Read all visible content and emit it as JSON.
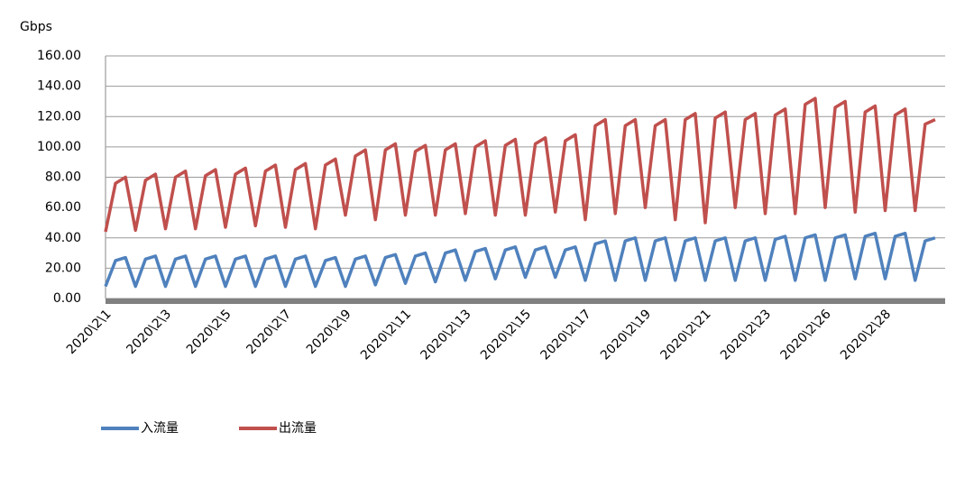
{
  "chart_data": {
    "type": "line",
    "y_label": "Gbps",
    "ylim": [
      0,
      160
    ],
    "yticks": [
      {
        "value": 0,
        "label": "0.00"
      },
      {
        "value": 20,
        "label": "20.00"
      },
      {
        "value": 40,
        "label": "40.00"
      },
      {
        "value": 60,
        "label": "60.00"
      },
      {
        "value": 80,
        "label": "80.00"
      },
      {
        "value": 100,
        "label": "100.00"
      },
      {
        "value": 120,
        "label": "120.00"
      },
      {
        "value": 140,
        "label": "140.00"
      },
      {
        "value": 160,
        "label": "160.00"
      }
    ],
    "grid": true,
    "legend": "bottom",
    "categories": [
      "2020\\2\\1",
      null,
      null,
      null,
      null,
      null,
      "2020\\2\\3",
      null,
      null,
      null,
      null,
      null,
      "2020\\2\\5",
      null,
      null,
      null,
      null,
      null,
      "2020\\2\\7",
      null,
      null,
      null,
      null,
      null,
      "2020\\2\\9",
      null,
      null,
      null,
      null,
      null,
      "2020\\2\\11",
      null,
      null,
      null,
      null,
      null,
      "2020\\2\\13",
      null,
      null,
      null,
      null,
      null,
      "2020\\2\\15",
      null,
      null,
      null,
      null,
      null,
      "2020\\2\\17",
      null,
      null,
      null,
      null,
      null,
      "2020\\2\\19",
      null,
      null,
      null,
      null,
      null,
      "2020\\2\\21",
      null,
      null,
      null,
      null,
      null,
      "2020\\2\\23",
      null,
      null,
      null,
      null,
      null,
      "2020\\2\\26",
      null,
      null,
      null,
      null,
      null,
      "2020\\2\\28",
      null,
      null,
      null,
      null,
      null
    ],
    "series": [
      {
        "name": "入流量",
        "color": "#4f81bd",
        "values": [
          8,
          25,
          27,
          8,
          26,
          28,
          8,
          26,
          28,
          8,
          26,
          28,
          8,
          26,
          28,
          8,
          26,
          28,
          8,
          26,
          28,
          8,
          25,
          27,
          8,
          26,
          28,
          9,
          27,
          29,
          10,
          28,
          30,
          11,
          30,
          32,
          12,
          31,
          33,
          13,
          32,
          34,
          14,
          32,
          34,
          14,
          32,
          34,
          12,
          36,
          38,
          12,
          38,
          40,
          12,
          38,
          40,
          12,
          38,
          40,
          12,
          38,
          40,
          12,
          38,
          40,
          12,
          39,
          41,
          12,
          40,
          42,
          12,
          40,
          42,
          13,
          41,
          43,
          13,
          41,
          43,
          12,
          38,
          40
        ]
      },
      {
        "name": "出流量",
        "color": "#c0504d",
        "values": [
          44,
          76,
          80,
          45,
          78,
          82,
          46,
          80,
          84,
          46,
          81,
          85,
          47,
          82,
          86,
          48,
          84,
          88,
          47,
          85,
          89,
          46,
          88,
          92,
          55,
          94,
          98,
          52,
          98,
          102,
          55,
          97,
          101,
          55,
          98,
          102,
          56,
          100,
          104,
          55,
          101,
          105,
          55,
          102,
          106,
          57,
          104,
          108,
          52,
          114,
          118,
          56,
          114,
          118,
          60,
          114,
          118,
          52,
          118,
          122,
          50,
          119,
          123,
          60,
          118,
          122,
          56,
          121,
          125,
          56,
          128,
          132,
          60,
          126,
          130,
          57,
          123,
          127,
          58,
          121,
          125,
          58,
          115,
          118
        ]
      }
    ]
  }
}
